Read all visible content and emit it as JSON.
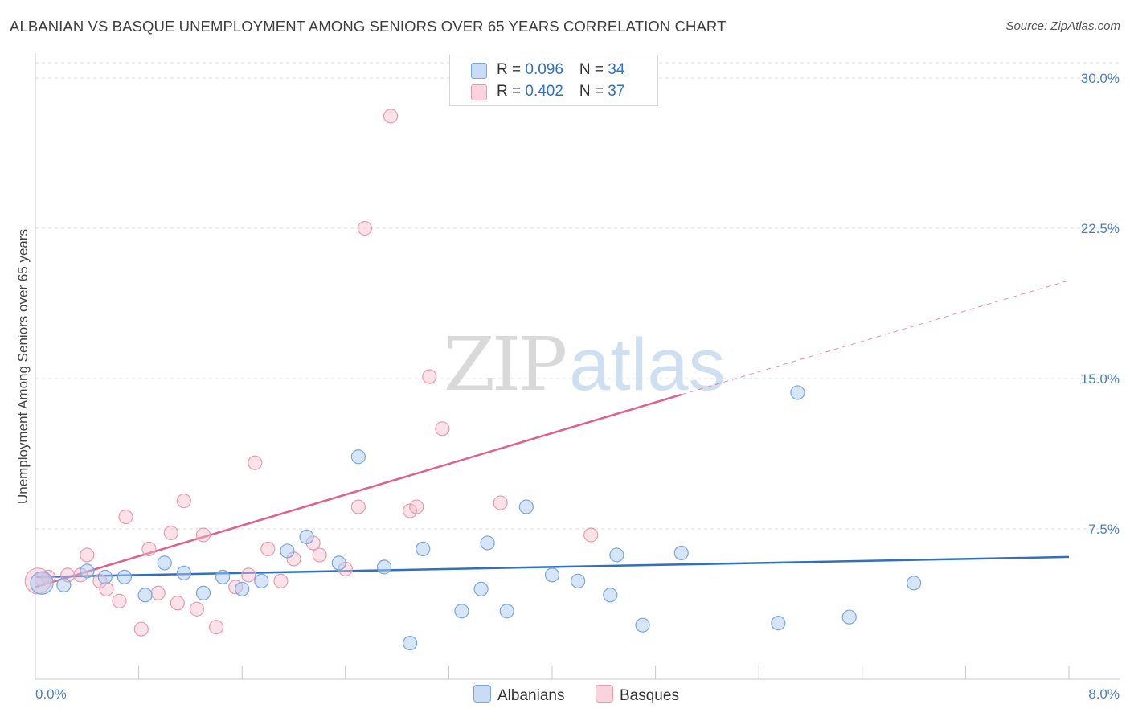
{
  "title": "ALBANIAN VS BASQUE UNEMPLOYMENT AMONG SENIORS OVER 65 YEARS CORRELATION CHART",
  "source": "Source: ZipAtlas.com",
  "watermark": {
    "part1": "ZIP",
    "part2": "atlas"
  },
  "colors": {
    "albanian_fill": "#aecbf0",
    "albanian_stroke": "#7aa6dc",
    "albanian_line": "#2f6fc4",
    "basque_fill": "#f7bccd",
    "basque_stroke": "#e89ab2",
    "basque_line": "#e0608d",
    "grid": "#dcdcdc",
    "tick_text": "#4a7fc7"
  },
  "legend": {
    "rows": [
      {
        "r_label": "R = ",
        "r_value": "0.096",
        "n_label": "N = ",
        "n_value": "34"
      },
      {
        "r_label": "R = ",
        "r_value": "0.402",
        "n_label": "N = ",
        "n_value": "37"
      }
    ]
  },
  "bottom_legend": {
    "albanians": "Albanians",
    "basques": "Basques"
  },
  "chart_data": {
    "type": "scatter",
    "title": "ALBANIAN VS BASQUE UNEMPLOYMENT AMONG SENIORS OVER 65 YEARS CORRELATION CHART",
    "xlabel": "",
    "ylabel": "Unemployment Among Seniors over 65 years",
    "xlim": [
      0,
      8.0
    ],
    "ylim": [
      0,
      30.8
    ],
    "x_tick_labels": [
      "0.0%",
      "8.0%"
    ],
    "y_ticks": [
      7.5,
      15.0,
      22.5,
      30.0
    ],
    "y_tick_labels": [
      "7.5%",
      "15.0%",
      "22.5%",
      "30.0%"
    ],
    "grid": true,
    "legend_position": "top-center",
    "series": [
      {
        "name": "Albanians",
        "r": 0.096,
        "n": 34,
        "points": [
          [
            0.05,
            4.8
          ],
          [
            0.22,
            4.7
          ],
          [
            0.4,
            5.4
          ],
          [
            0.54,
            5.1
          ],
          [
            0.69,
            5.1
          ],
          [
            0.85,
            4.2
          ],
          [
            1.0,
            5.8
          ],
          [
            1.15,
            5.3
          ],
          [
            1.3,
            4.3
          ],
          [
            1.45,
            5.1
          ],
          [
            1.6,
            4.5
          ],
          [
            1.75,
            4.9
          ],
          [
            1.95,
            6.4
          ],
          [
            2.1,
            7.1
          ],
          [
            2.35,
            5.8
          ],
          [
            2.5,
            11.1
          ],
          [
            2.7,
            5.6
          ],
          [
            2.9,
            1.8
          ],
          [
            3.0,
            6.5
          ],
          [
            3.3,
            3.4
          ],
          [
            3.45,
            4.5
          ],
          [
            3.5,
            6.8
          ],
          [
            3.65,
            3.4
          ],
          [
            3.8,
            8.6
          ],
          [
            4.0,
            5.2
          ],
          [
            4.2,
            4.9
          ],
          [
            4.45,
            4.2
          ],
          [
            4.5,
            6.2
          ],
          [
            4.7,
            2.7
          ],
          [
            5.0,
            6.3
          ],
          [
            5.75,
            2.8
          ],
          [
            5.9,
            14.3
          ],
          [
            6.3,
            3.1
          ],
          [
            6.8,
            4.8
          ]
        ],
        "trend": {
          "x0": 0.0,
          "y0": 5.1,
          "x1": 8.0,
          "y1": 6.1
        }
      },
      {
        "name": "Basques",
        "r": 0.402,
        "n": 37,
        "points": [
          [
            0.05,
            5.0
          ],
          [
            0.1,
            5.1
          ],
          [
            0.25,
            5.2
          ],
          [
            0.35,
            5.2
          ],
          [
            0.4,
            6.2
          ],
          [
            0.5,
            4.9
          ],
          [
            0.55,
            4.5
          ],
          [
            0.65,
            3.9
          ],
          [
            0.7,
            8.1
          ],
          [
            0.82,
            2.5
          ],
          [
            0.88,
            6.5
          ],
          [
            0.95,
            4.3
          ],
          [
            1.05,
            7.3
          ],
          [
            1.1,
            3.8
          ],
          [
            1.15,
            8.9
          ],
          [
            1.25,
            3.5
          ],
          [
            1.3,
            7.2
          ],
          [
            1.4,
            2.6
          ],
          [
            1.55,
            4.6
          ],
          [
            1.65,
            5.2
          ],
          [
            1.7,
            10.8
          ],
          [
            1.8,
            6.5
          ],
          [
            1.9,
            4.9
          ],
          [
            2.0,
            6.0
          ],
          [
            2.15,
            6.8
          ],
          [
            2.2,
            6.2
          ],
          [
            2.4,
            5.5
          ],
          [
            2.5,
            8.6
          ],
          [
            2.55,
            22.5
          ],
          [
            2.75,
            28.1
          ],
          [
            2.9,
            8.4
          ],
          [
            2.95,
            8.6
          ],
          [
            3.05,
            15.1
          ],
          [
            3.15,
            12.5
          ],
          [
            3.6,
            8.8
          ],
          [
            4.3,
            7.2
          ],
          [
            0.02,
            4.9
          ]
        ],
        "trend": {
          "x0": 0.0,
          "y0": 4.6,
          "x1": 5.0,
          "y1": 14.2,
          "dash_x1": 8.0,
          "dash_y1": 19.9
        }
      }
    ]
  }
}
